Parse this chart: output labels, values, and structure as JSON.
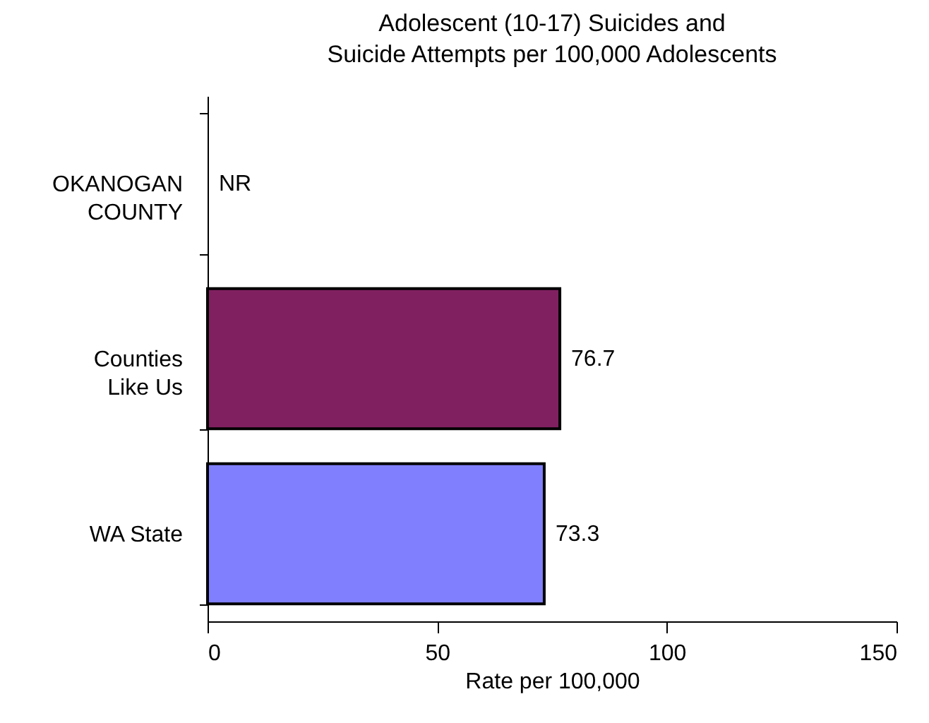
{
  "chart_data": {
    "type": "bar",
    "orientation": "horizontal",
    "title": "Adolescent (10-17) Suicides and\nSuicide Attempts per 100,000 Adolescents",
    "xlabel": "Rate per 100,000",
    "categories": [
      "OKANOGAN COUNTY",
      "Counties Like Us",
      "WA State"
    ],
    "values": [
      null,
      76.7,
      73.3
    ],
    "colors": [
      "#800000",
      "#802060",
      "#8080ff"
    ],
    "value_labels": [
      "NR",
      "76.7",
      "73.3"
    ],
    "xlim": [
      0,
      150
    ],
    "xticks": [
      0,
      50,
      100,
      150
    ],
    "grid": false
  }
}
